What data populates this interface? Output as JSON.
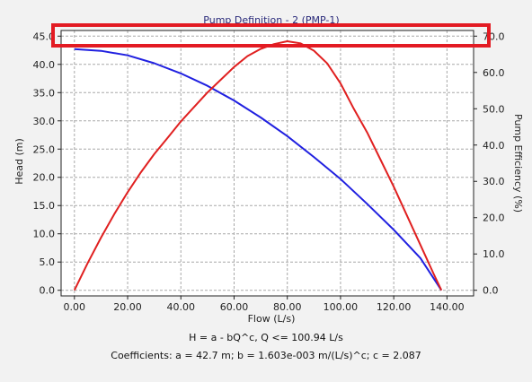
{
  "chart_data": {
    "type": "line",
    "title": "Pump Definition - 2 (PMP-1)",
    "xlabel": "Flow (L/s)",
    "ylabel": "Head (m)",
    "y2label": "Pump Efficiency (%)",
    "xlim": [
      -5,
      150
    ],
    "ylim": [
      -1,
      46
    ],
    "y2lim": [
      -1.55556,
      71.55556
    ],
    "x_ticks": [
      "0.00",
      "20.00",
      "40.00",
      "60.00",
      "80.00",
      "100.00",
      "120.00",
      "140.00"
    ],
    "y_ticks": [
      "0.0",
      "5.0",
      "10.0",
      "15.0",
      "20.0",
      "25.0",
      "30.0",
      "35.0",
      "40.0",
      "45.0"
    ],
    "y2_ticks": [
      "0.0",
      "10.0",
      "20.0",
      "30.0",
      "40.0",
      "50.0",
      "60.0",
      "70.0"
    ],
    "grid": true,
    "series": [
      {
        "axis": "left",
        "color": "#2020e0",
        "x": [
          0,
          10,
          20,
          30,
          40,
          50,
          60,
          70,
          80,
          90,
          100,
          110,
          120,
          130,
          137.9
        ],
        "y": [
          42.7,
          42.4,
          41.6,
          40.2,
          38.4,
          36.2,
          33.6,
          30.6,
          27.3,
          23.6,
          19.7,
          15.3,
          10.7,
          5.7,
          0.0
        ]
      },
      {
        "axis": "right",
        "color": "#e02020",
        "x": [
          0,
          5,
          10,
          15,
          20,
          25,
          30,
          35,
          40,
          45,
          50,
          55,
          60,
          65,
          70,
          75,
          80,
          85,
          90,
          95,
          100,
          105,
          110,
          115,
          120,
          125,
          130,
          135,
          137.9
        ],
        "y": [
          0.0,
          7.5,
          14.5,
          21.0,
          27.0,
          32.5,
          37.5,
          42.0,
          46.5,
          50.5,
          54.5,
          58.0,
          61.5,
          64.5,
          66.5,
          67.8,
          68.6,
          68.0,
          66.0,
          62.5,
          57.0,
          50.0,
          43.5,
          36.0,
          28.5,
          20.5,
          12.5,
          4.5,
          0.0
        ]
      }
    ]
  },
  "footer": {
    "equation": "H = a - bQ^c, Q <= 100.94 L/s",
    "coefficients": "Coefficients:  a = 42.7 m; b = 1.603e-003 m/(L/s)^c; c = 2.087"
  },
  "highlight": {
    "color": "#e31b23"
  }
}
